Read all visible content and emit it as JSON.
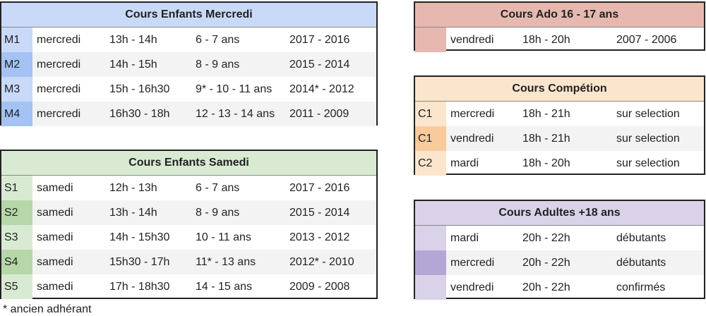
{
  "tables": {
    "mercredi": {
      "title": "Cours Enfants Mercredi",
      "colors": {
        "header": "#c9daf8",
        "code_light": "#c9daf8",
        "code_dark": "#a4c2f4"
      },
      "rows": [
        {
          "code": "M1",
          "day": "mercredi",
          "time": "13h - 14h",
          "age": "6 - 7 ans",
          "years": "2017 - 2016"
        },
        {
          "code": "M2",
          "day": "mercredi",
          "time": "14h - 15h",
          "age": "8 - 9 ans",
          "years": "2015 - 2014"
        },
        {
          "code": "M3",
          "day": "mercredi",
          "time": "15h - 16h30",
          "age": "9* - 10 - 11 ans",
          "years": "2014* - 2012"
        },
        {
          "code": "M4",
          "day": "mercredi",
          "time": "16h30 - 18h",
          "age": "12 - 13 - 14 ans",
          "years": "2011 - 2009"
        }
      ]
    },
    "samedi": {
      "title": "Cours Enfants Samedi",
      "colors": {
        "header": "#d9ead3",
        "code_light": "#d9ead3",
        "code_dark": "#b6d7a8"
      },
      "rows": [
        {
          "code": "S1",
          "day": "samedi",
          "time": "12h - 13h",
          "age": "6 - 7 ans",
          "years": "2017 - 2016"
        },
        {
          "code": "S2",
          "day": "samedi",
          "time": "13h - 14h",
          "age": "8 - 9 ans",
          "years": "2015 - 2014"
        },
        {
          "code": "S3",
          "day": "samedi",
          "time": "14h - 15h30",
          "age": "10 - 11 ans",
          "years": "2013 - 2012"
        },
        {
          "code": "S4",
          "day": "samedi",
          "time": "15h30 - 17h",
          "age": "11* - 13 ans",
          "years": "2012* - 2010"
        },
        {
          "code": "S5",
          "day": "samedi",
          "time": "17h - 18h30",
          "age": "14 - 15 ans",
          "years": "2009 - 2008"
        }
      ]
    },
    "ado": {
      "title": "Cours Ado 16 - 17 ans",
      "colors": {
        "header": "#e6b8af",
        "code_light": "#e6b8af",
        "code_dark": "#dd7e6b"
      },
      "rows": [
        {
          "code": "",
          "day": "vendredi",
          "time": "18h - 20h",
          "info": "2007 - 2006"
        }
      ]
    },
    "competition": {
      "title": "Cours Compétion",
      "colors": {
        "header": "#fce5cd",
        "code_light": "#fce5cd",
        "code_dark": "#f9cb9c"
      },
      "rows": [
        {
          "code": "C1",
          "day": "mercredi",
          "time": "18h - 21h",
          "info": "sur selection"
        },
        {
          "code": "C1",
          "day": "vendredi",
          "time": "18h - 21h",
          "info": "sur selection"
        },
        {
          "code": "C2",
          "day": "mardi",
          "time": "18h - 20h",
          "info": "sur selection"
        }
      ]
    },
    "adultes": {
      "title": "Cours Adultes +18 ans",
      "colors": {
        "header": "#d9d2e9",
        "code_light": "#d9d2e9",
        "code_dark": "#b4a7d6"
      },
      "rows": [
        {
          "code": "",
          "day": "mardi",
          "time": "20h - 22h",
          "info": "débutants"
        },
        {
          "code": "",
          "day": "mercredi",
          "time": "20h - 22h",
          "info": "débutants"
        },
        {
          "code": "",
          "day": "vendredi",
          "time": "20h - 22h",
          "info": "confirmés"
        }
      ]
    }
  },
  "footnote": "* ancien adhérant"
}
